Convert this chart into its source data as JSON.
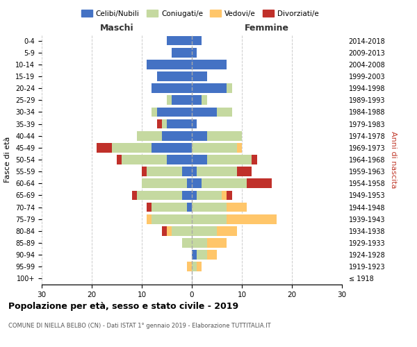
{
  "age_groups": [
    "100+",
    "95-99",
    "90-94",
    "85-89",
    "80-84",
    "75-79",
    "70-74",
    "65-69",
    "60-64",
    "55-59",
    "50-54",
    "45-49",
    "40-44",
    "35-39",
    "30-34",
    "25-29",
    "20-24",
    "15-19",
    "10-14",
    "5-9",
    "0-4"
  ],
  "birth_years": [
    "≤ 1918",
    "1919-1923",
    "1924-1928",
    "1929-1933",
    "1934-1938",
    "1939-1943",
    "1944-1948",
    "1949-1953",
    "1954-1958",
    "1959-1963",
    "1964-1968",
    "1969-1973",
    "1974-1978",
    "1979-1983",
    "1984-1988",
    "1989-1993",
    "1994-1998",
    "1999-2003",
    "2004-2008",
    "2009-2013",
    "2014-2018"
  ],
  "maschi": {
    "celibi": [
      0,
      0,
      0,
      0,
      0,
      0,
      1,
      2,
      1,
      2,
      5,
      8,
      6,
      5,
      7,
      4,
      8,
      7,
      9,
      4,
      5
    ],
    "coniugati": [
      0,
      0,
      0,
      2,
      4,
      8,
      7,
      9,
      9,
      7,
      9,
      8,
      5,
      1,
      1,
      1,
      0,
      0,
      0,
      0,
      0
    ],
    "vedovi": [
      0,
      1,
      0,
      0,
      1,
      1,
      0,
      0,
      0,
      0,
      0,
      0,
      0,
      0,
      0,
      0,
      0,
      0,
      0,
      0,
      0
    ],
    "divorziati": [
      0,
      0,
      0,
      0,
      1,
      0,
      1,
      1,
      0,
      1,
      1,
      3,
      0,
      1,
      0,
      0,
      0,
      0,
      0,
      0,
      0
    ]
  },
  "femmine": {
    "nubili": [
      0,
      0,
      1,
      0,
      0,
      0,
      0,
      1,
      2,
      1,
      3,
      0,
      3,
      1,
      5,
      2,
      7,
      3,
      7,
      1,
      2
    ],
    "coniugate": [
      0,
      1,
      2,
      3,
      5,
      7,
      7,
      5,
      9,
      8,
      9,
      9,
      7,
      0,
      3,
      1,
      1,
      0,
      0,
      0,
      0
    ],
    "vedove": [
      0,
      1,
      2,
      4,
      4,
      10,
      4,
      1,
      0,
      0,
      0,
      1,
      0,
      0,
      0,
      0,
      0,
      0,
      0,
      0,
      0
    ],
    "divorziate": [
      0,
      0,
      0,
      0,
      0,
      0,
      0,
      1,
      5,
      3,
      1,
      0,
      0,
      0,
      0,
      0,
      0,
      0,
      0,
      0,
      0
    ]
  },
  "colors": {
    "celibi": "#4472c4",
    "coniugati": "#c5d9a0",
    "vedovi": "#ffc66a",
    "divorziati": "#c0302a"
  },
  "xlim": 30,
  "title": "Popolazione per età, sesso e stato civile - 2019",
  "subtitle": "COMUNE DI NIELLA BELBO (CN) - Dati ISTAT 1° gennaio 2019 - Elaborazione TUTTITALIA.IT",
  "ylabel": "Fasce di età",
  "ylabel_right": "Anni di nascita",
  "legend_labels": [
    "Celibi/Nubili",
    "Coniugati/e",
    "Vedovi/e",
    "Divorziati/e"
  ]
}
